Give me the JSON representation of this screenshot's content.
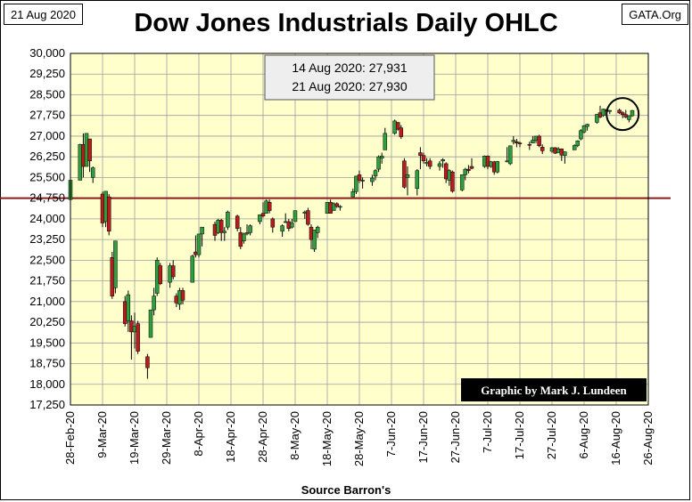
{
  "header": {
    "date_label": "21 Aug 2020",
    "site_label": "GATA.Org"
  },
  "footer": {
    "source": "Source Barron's"
  },
  "colors": {
    "plot_bg": "#ffffcc",
    "grid": "#9e9e9e",
    "up": "#2e9e3e",
    "down": "#b81c1c",
    "wick": "#000000",
    "reference_line": "#8b1a1a"
  },
  "chart_data": {
    "type": "candlestick",
    "title": "Dow Jones Industrials Daily OHLC",
    "xlabel": "",
    "ylabel": "",
    "ylim": [
      17250,
      30000
    ],
    "xlim": [
      "2020-02-28",
      "2020-08-26"
    ],
    "y_ticks": [
      "17,250",
      "18,000",
      "18,750",
      "19,500",
      "20,250",
      "21,000",
      "21,750",
      "22,500",
      "23,250",
      "24,000",
      "24,750",
      "25,500",
      "26,250",
      "27,000",
      "27,750",
      "28,500",
      "29,250",
      "30,000"
    ],
    "x_ticks": [
      "28-Feb-20",
      "9-Mar-20",
      "19-Mar-20",
      "29-Mar-20",
      "8-Apr-20",
      "18-Apr-20",
      "28-Apr-20",
      "8-May-20",
      "18-May-20",
      "28-May-20",
      "7-Jun-20",
      "17-Jun-20",
      "27-Jun-20",
      "7-Jul-20",
      "17-Jul-20",
      "27-Jul-20",
      "6-Aug-20",
      "16-Aug-20",
      "26-Aug-20"
    ],
    "grid": true,
    "reference_line": {
      "value": 24750
    },
    "annotation": {
      "lines": [
        "14 Aug 2020: 27,931",
        "21 Aug 2020: 27,930"
      ]
    },
    "credit": "Graphic by Mark J. Lundeen",
    "highlight_circle": {
      "date": "2020-08-18",
      "value": 27800
    },
    "series": [
      {
        "date": "2020-02-28",
        "open": 24700,
        "high": 25450,
        "low": 24600,
        "close": 25400
      },
      {
        "date": "2020-03-02",
        "open": 25400,
        "high": 26720,
        "low": 25400,
        "close": 26700
      },
      {
        "date": "2020-03-03",
        "open": 26700,
        "high": 27100,
        "low": 25500,
        "close": 25900
      },
      {
        "date": "2020-03-04",
        "open": 25900,
        "high": 27100,
        "low": 25900,
        "close": 27100
      },
      {
        "date": "2020-03-05",
        "open": 26900,
        "high": 26900,
        "low": 25700,
        "close": 26100
      },
      {
        "date": "2020-03-06",
        "open": 25500,
        "high": 25900,
        "low": 25300,
        "close": 25850
      },
      {
        "date": "2020-03-09",
        "open": 24900,
        "high": 24990,
        "low": 23700,
        "close": 23850
      },
      {
        "date": "2020-03-10",
        "open": 23900,
        "high": 25000,
        "low": 23700,
        "close": 25000
      },
      {
        "date": "2020-03-11",
        "open": 24800,
        "high": 24900,
        "low": 23400,
        "close": 23550
      },
      {
        "date": "2020-03-12",
        "open": 22600,
        "high": 22800,
        "low": 21100,
        "close": 21200
      },
      {
        "date": "2020-03-13",
        "open": 21500,
        "high": 23200,
        "low": 21300,
        "close": 23200
      },
      {
        "date": "2020-03-16",
        "open": 21000,
        "high": 21200,
        "low": 20100,
        "close": 20200
      },
      {
        "date": "2020-03-17",
        "open": 20300,
        "high": 21400,
        "low": 19900,
        "close": 21250
      },
      {
        "date": "2020-03-18",
        "open": 20300,
        "high": 20500,
        "low": 18900,
        "close": 19900
      },
      {
        "date": "2020-03-19",
        "open": 19900,
        "high": 20600,
        "low": 19300,
        "close": 20100
      },
      {
        "date": "2020-03-20",
        "open": 20200,
        "high": 20300,
        "low": 19100,
        "close": 19200
      },
      {
        "date": "2020-03-23",
        "open": 19000,
        "high": 19100,
        "low": 18200,
        "close": 18600
      },
      {
        "date": "2020-03-24",
        "open": 19700,
        "high": 20700,
        "low": 19700,
        "close": 20700
      },
      {
        "date": "2020-03-25",
        "open": 20700,
        "high": 21500,
        "low": 20500,
        "close": 21200
      },
      {
        "date": "2020-03-26",
        "open": 21300,
        "high": 22600,
        "low": 21200,
        "close": 22500
      },
      {
        "date": "2020-03-27",
        "open": 22300,
        "high": 22400,
        "low": 21600,
        "close": 21650
      },
      {
        "date": "2020-03-30",
        "open": 21700,
        "high": 22400,
        "low": 21500,
        "close": 22300
      },
      {
        "date": "2020-03-31",
        "open": 22300,
        "high": 22500,
        "low": 21800,
        "close": 21900
      },
      {
        "date": "2020-04-01",
        "open": 21200,
        "high": 21300,
        "low": 20800,
        "close": 20950
      },
      {
        "date": "2020-04-02",
        "open": 20900,
        "high": 21500,
        "low": 20700,
        "close": 21400
      },
      {
        "date": "2020-04-03",
        "open": 21400,
        "high": 21500,
        "low": 20900,
        "close": 21050
      },
      {
        "date": "2020-04-06",
        "open": 21700,
        "high": 22700,
        "low": 21700,
        "close": 22650
      },
      {
        "date": "2020-04-07",
        "open": 22800,
        "high": 23400,
        "low": 22600,
        "close": 22700
      },
      {
        "date": "2020-04-08",
        "open": 22700,
        "high": 23450,
        "low": 22600,
        "close": 23450
      },
      {
        "date": "2020-04-09",
        "open": 23450,
        "high": 23700,
        "low": 23000,
        "close": 23700
      },
      {
        "date": "2020-04-13",
        "open": 23800,
        "high": 23900,
        "low": 23200,
        "close": 23400
      },
      {
        "date": "2020-04-14",
        "open": 23500,
        "high": 24000,
        "low": 23450,
        "close": 23950
      },
      {
        "date": "2020-04-15",
        "open": 23950,
        "high": 24000,
        "low": 23200,
        "close": 23500
      },
      {
        "date": "2020-04-16",
        "open": 23500,
        "high": 23700,
        "low": 23200,
        "close": 23550
      },
      {
        "date": "2020-04-17",
        "open": 23700,
        "high": 24300,
        "low": 23600,
        "close": 24250
      },
      {
        "date": "2020-04-20",
        "open": 24100,
        "high": 24150,
        "low": 23550,
        "close": 23650
      },
      {
        "date": "2020-04-21",
        "open": 23500,
        "high": 23700,
        "low": 22900,
        "close": 23000
      },
      {
        "date": "2020-04-22",
        "open": 23200,
        "high": 23500,
        "low": 23100,
        "close": 23450
      },
      {
        "date": "2020-04-23",
        "open": 23450,
        "high": 23800,
        "low": 23400,
        "close": 23500
      },
      {
        "date": "2020-04-24",
        "open": 23500,
        "high": 23800,
        "low": 23400,
        "close": 23750
      },
      {
        "date": "2020-04-27",
        "open": 23900,
        "high": 24100,
        "low": 23800,
        "close": 24150
      },
      {
        "date": "2020-04-28",
        "open": 24200,
        "high": 24600,
        "low": 24050,
        "close": 24100
      },
      {
        "date": "2020-04-29",
        "open": 24200,
        "high": 24700,
        "low": 24200,
        "close": 24650
      },
      {
        "date": "2020-04-30",
        "open": 24600,
        "high": 24700,
        "low": 24200,
        "close": 24300
      },
      {
        "date": "2020-05-01",
        "open": 24000,
        "high": 24050,
        "low": 23500,
        "close": 23700
      },
      {
        "date": "2020-05-04",
        "open": 23550,
        "high": 23800,
        "low": 23350,
        "close": 23750
      },
      {
        "date": "2020-05-05",
        "open": 23900,
        "high": 24200,
        "low": 23850,
        "close": 23900
      },
      {
        "date": "2020-05-06",
        "open": 23900,
        "high": 24000,
        "low": 23550,
        "close": 23650
      },
      {
        "date": "2020-05-07",
        "open": 23700,
        "high": 24000,
        "low": 23650,
        "close": 23850
      },
      {
        "date": "2020-05-08",
        "open": 23900,
        "high": 24300,
        "low": 23900,
        "close": 24300
      },
      {
        "date": "2020-05-11",
        "open": 24200,
        "high": 24300,
        "low": 24000,
        "close": 24250
      },
      {
        "date": "2020-05-12",
        "open": 24300,
        "high": 24400,
        "low": 23750,
        "close": 23800
      },
      {
        "date": "2020-05-13",
        "open": 23700,
        "high": 23800,
        "low": 22900,
        "close": 23250
      },
      {
        "date": "2020-05-14",
        "open": 22900,
        "high": 23600,
        "low": 22800,
        "close": 23600
      },
      {
        "date": "2020-05-15",
        "open": 23500,
        "high": 23750,
        "low": 23300,
        "close": 23700
      },
      {
        "date": "2020-05-18",
        "open": 24200,
        "high": 24600,
        "low": 24200,
        "close": 24600
      },
      {
        "date": "2020-05-19",
        "open": 24600,
        "high": 24700,
        "low": 24200,
        "close": 24200
      },
      {
        "date": "2020-05-20",
        "open": 24300,
        "high": 24600,
        "low": 24300,
        "close": 24550
      },
      {
        "date": "2020-05-21",
        "open": 24550,
        "high": 24600,
        "low": 24400,
        "close": 24450
      },
      {
        "date": "2020-05-22",
        "open": 24450,
        "high": 24500,
        "low": 24300,
        "close": 24450
      },
      {
        "date": "2020-05-26",
        "open": 24800,
        "high": 25100,
        "low": 24800,
        "close": 24990
      },
      {
        "date": "2020-05-27",
        "open": 24990,
        "high": 25500,
        "low": 24900,
        "close": 25550
      },
      {
        "date": "2020-05-28",
        "open": 25600,
        "high": 25750,
        "low": 25300,
        "close": 25400
      },
      {
        "date": "2020-05-29",
        "open": 25400,
        "high": 25500,
        "low": 25100,
        "close": 25380
      },
      {
        "date": "2020-06-01",
        "open": 25350,
        "high": 25600,
        "low": 25200,
        "close": 25480
      },
      {
        "date": "2020-06-02",
        "open": 25550,
        "high": 25800,
        "low": 25400,
        "close": 25750
      },
      {
        "date": "2020-06-03",
        "open": 25800,
        "high": 26300,
        "low": 25700,
        "close": 26250
      },
      {
        "date": "2020-06-04",
        "open": 26200,
        "high": 26400,
        "low": 26000,
        "close": 26280
      },
      {
        "date": "2020-06-05",
        "open": 26500,
        "high": 27300,
        "low": 26500,
        "close": 27100
      },
      {
        "date": "2020-06-08",
        "open": 27100,
        "high": 27600,
        "low": 27050,
        "close": 27550
      },
      {
        "date": "2020-06-09",
        "open": 27500,
        "high": 27500,
        "low": 27200,
        "close": 27250
      },
      {
        "date": "2020-06-10",
        "open": 27300,
        "high": 27400,
        "low": 26900,
        "close": 26980
      },
      {
        "date": "2020-06-11",
        "open": 26100,
        "high": 26200,
        "low": 25100,
        "close": 25150
      },
      {
        "date": "2020-06-12",
        "open": 25500,
        "high": 25900,
        "low": 24850,
        "close": 25600
      },
      {
        "date": "2020-06-15",
        "open": 25100,
        "high": 25800,
        "low": 24850,
        "close": 25750
      },
      {
        "date": "2020-06-16",
        "open": 26400,
        "high": 26600,
        "low": 25800,
        "close": 26300
      },
      {
        "date": "2020-06-17",
        "open": 26300,
        "high": 26400,
        "low": 26000,
        "close": 26100
      },
      {
        "date": "2020-06-18",
        "open": 26000,
        "high": 26200,
        "low": 25900,
        "close": 26050
      },
      {
        "date": "2020-06-19",
        "open": 26100,
        "high": 26200,
        "low": 25800,
        "close": 25900
      },
      {
        "date": "2020-06-22",
        "open": 25900,
        "high": 26100,
        "low": 25750,
        "close": 26000
      },
      {
        "date": "2020-06-23",
        "open": 26100,
        "high": 26200,
        "low": 25850,
        "close": 26150
      },
      {
        "date": "2020-06-24",
        "open": 26000,
        "high": 26050,
        "low": 25300,
        "close": 25450
      },
      {
        "date": "2020-06-25",
        "open": 25400,
        "high": 25800,
        "low": 25200,
        "close": 25750
      },
      {
        "date": "2020-06-26",
        "open": 25700,
        "high": 25750,
        "low": 24950,
        "close": 25000
      },
      {
        "date": "2020-06-29",
        "open": 25050,
        "high": 25600,
        "low": 25000,
        "close": 25600
      },
      {
        "date": "2020-06-30",
        "open": 25600,
        "high": 25850,
        "low": 25400,
        "close": 25800
      },
      {
        "date": "2020-07-01",
        "open": 25800,
        "high": 25950,
        "low": 25650,
        "close": 25750
      },
      {
        "date": "2020-07-02",
        "open": 25900,
        "high": 26200,
        "low": 25800,
        "close": 25830
      },
      {
        "date": "2020-07-06",
        "open": 25900,
        "high": 26300,
        "low": 25850,
        "close": 26280
      },
      {
        "date": "2020-07-07",
        "open": 26280,
        "high": 26300,
        "low": 25800,
        "close": 25900
      },
      {
        "date": "2020-07-08",
        "open": 25900,
        "high": 26100,
        "low": 25850,
        "close": 26070
      },
      {
        "date": "2020-07-09",
        "open": 26070,
        "high": 26100,
        "low": 25600,
        "close": 25700
      },
      {
        "date": "2020-07-10",
        "open": 25700,
        "high": 26100,
        "low": 25650,
        "close": 26080
      },
      {
        "date": "2020-07-13",
        "open": 26100,
        "high": 26600,
        "low": 26050,
        "close": 26100
      },
      {
        "date": "2020-07-14",
        "open": 26000,
        "high": 26650,
        "low": 25950,
        "close": 26650
      },
      {
        "date": "2020-07-15",
        "open": 26800,
        "high": 27000,
        "low": 26700,
        "close": 26850
      },
      {
        "date": "2020-07-16",
        "open": 26800,
        "high": 26900,
        "low": 26600,
        "close": 26750
      },
      {
        "date": "2020-07-17",
        "open": 26750,
        "high": 26800,
        "low": 26600,
        "close": 26720
      },
      {
        "date": "2020-07-20",
        "open": 26700,
        "high": 26800,
        "low": 26500,
        "close": 26690
      },
      {
        "date": "2020-07-21",
        "open": 26750,
        "high": 27000,
        "low": 26750,
        "close": 26850
      },
      {
        "date": "2020-07-22",
        "open": 26850,
        "high": 27000,
        "low": 26750,
        "close": 27000
      },
      {
        "date": "2020-07-23",
        "open": 27000,
        "high": 27050,
        "low": 26600,
        "close": 26650
      },
      {
        "date": "2020-07-24",
        "open": 26600,
        "high": 26700,
        "low": 26350,
        "close": 26470
      },
      {
        "date": "2020-07-27",
        "open": 26450,
        "high": 26600,
        "low": 26400,
        "close": 26580
      },
      {
        "date": "2020-07-28",
        "open": 26580,
        "high": 26600,
        "low": 26350,
        "close": 26380
      },
      {
        "date": "2020-07-29",
        "open": 26400,
        "high": 26600,
        "low": 26400,
        "close": 26540
      },
      {
        "date": "2020-07-30",
        "open": 26540,
        "high": 26550,
        "low": 26100,
        "close": 26310
      },
      {
        "date": "2020-07-31",
        "open": 26300,
        "high": 26450,
        "low": 26000,
        "close": 26430
      },
      {
        "date": "2020-08-03",
        "open": 26500,
        "high": 26700,
        "low": 26500,
        "close": 26660
      },
      {
        "date": "2020-08-04",
        "open": 26660,
        "high": 26850,
        "low": 26600,
        "close": 26830
      },
      {
        "date": "2020-08-05",
        "open": 26900,
        "high": 27250,
        "low": 26850,
        "close": 27200
      },
      {
        "date": "2020-08-06",
        "open": 27150,
        "high": 27400,
        "low": 27100,
        "close": 27380
      },
      {
        "date": "2020-08-07",
        "open": 27350,
        "high": 27450,
        "low": 27200,
        "close": 27430
      },
      {
        "date": "2020-08-10",
        "open": 27500,
        "high": 27800,
        "low": 27450,
        "close": 27790
      },
      {
        "date": "2020-08-11",
        "open": 27850,
        "high": 28100,
        "low": 27650,
        "close": 27690
      },
      {
        "date": "2020-08-12",
        "open": 27750,
        "high": 28000,
        "low": 27700,
        "close": 27980
      },
      {
        "date": "2020-08-13",
        "open": 27950,
        "high": 28000,
        "low": 27800,
        "close": 27900
      },
      {
        "date": "2020-08-14",
        "open": 27900,
        "high": 27950,
        "low": 27800,
        "close": 27931
      },
      {
        "date": "2020-08-17",
        "open": 27940,
        "high": 28000,
        "low": 27800,
        "close": 27840
      },
      {
        "date": "2020-08-18",
        "open": 27850,
        "high": 27900,
        "low": 27650,
        "close": 27780
      },
      {
        "date": "2020-08-19",
        "open": 27780,
        "high": 27950,
        "low": 27650,
        "close": 27690
      },
      {
        "date": "2020-08-20",
        "open": 27600,
        "high": 27750,
        "low": 27500,
        "close": 27740
      },
      {
        "date": "2020-08-21",
        "open": 27740,
        "high": 27950,
        "low": 27700,
        "close": 27930
      }
    ]
  }
}
